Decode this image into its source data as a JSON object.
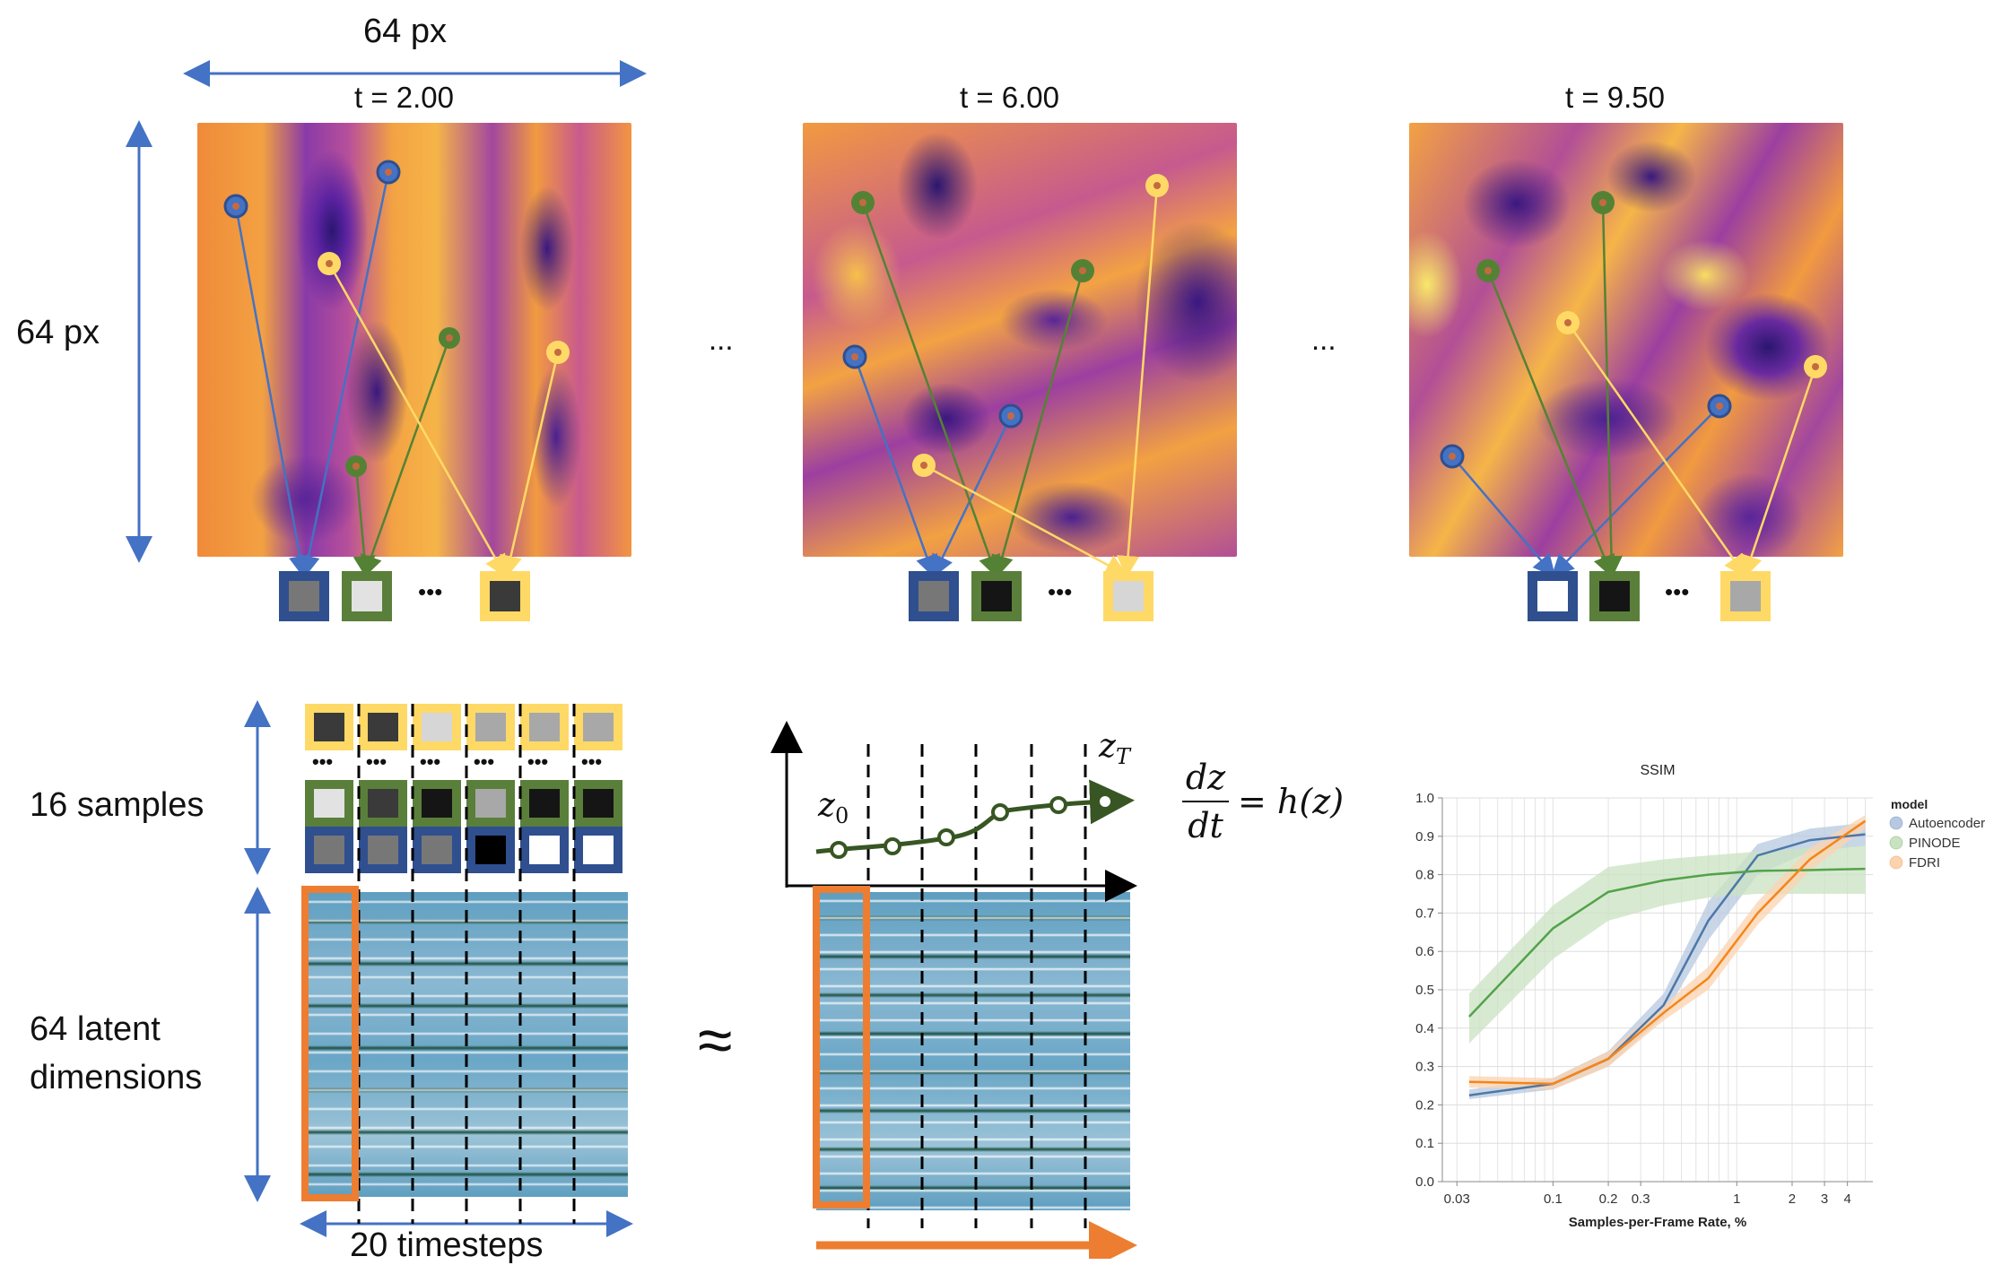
{
  "size_label_top": "64 px",
  "size_label_left": "64 px",
  "ellipsis": "...",
  "ellipsis_dots": "•••",
  "frames": [
    {
      "title": "t = 2.00",
      "swatches": [
        "#777777",
        "#e2e2e2",
        "#3a3a3a"
      ]
    },
    {
      "title": "t = 6.00",
      "swatches": [
        "#777777",
        "#151515",
        "#d6d6d6"
      ]
    },
    {
      "title": "t = 9.50",
      "swatches": [
        "#ffffff",
        "#151515",
        "#a8a8a8"
      ]
    }
  ],
  "samples_label": "16 samples",
  "latent_label_line1": "64 latent",
  "latent_label_line2": "dimensions",
  "timesteps_label": "20 timesteps",
  "approx_symbol": "≈",
  "ode": {
    "numerator": "dz",
    "denominator": "dt",
    "rhs": "= h(z)",
    "z0": "z",
    "z0_sub": "0",
    "zT": "z",
    "zT_sub": "T"
  },
  "colors": {
    "blue": "#4472c4",
    "blue_border": "#2f4f8f",
    "green": "#548235",
    "green_border": "#5a7f3a",
    "yellow": "#ffd966",
    "orange": "#ed7d31",
    "dark_green": "#375623"
  },
  "sample_grid": {
    "yellow_row": [
      "#3a3a3a",
      "#3a3a3a",
      "#d6d6d6",
      "#a8a8a8",
      "#a8a8a8",
      "#a8a8a8"
    ],
    "green_row": [
      "#e2e2e2",
      "#3a3a3a",
      "#151515",
      "#a8a8a8",
      "#151515",
      "#151515"
    ],
    "blue_row": [
      "#777777",
      "#777777",
      "#777777",
      "#000000",
      "#ffffff",
      "#ffffff"
    ]
  },
  "chart_data": {
    "type": "line",
    "title": "SSIM",
    "xlabel": "Samples-per-Frame Rate, %",
    "ylabel": "",
    "x_scale": "log",
    "xlim": [
      0.025,
      5.5
    ],
    "ylim": [
      0,
      1.0
    ],
    "x_ticks": [
      0.03,
      0.1,
      0.2,
      0.3,
      1,
      2,
      3,
      4
    ],
    "x_tick_labels": [
      "0.03",
      "0.1",
      "0.2",
      "0.3",
      "1",
      "2",
      "3",
      "4"
    ],
    "y_ticks": [
      0,
      0.1,
      0.2,
      0.3,
      0.4,
      0.5,
      0.6,
      0.7,
      0.8,
      0.9,
      1.0
    ],
    "y_tick_labels": [
      "0.0",
      "0.1",
      "0.2",
      "0.3",
      "0.4",
      "0.5",
      "0.6",
      "0.7",
      "0.8",
      "0.9",
      "1.0"
    ],
    "grid": true,
    "legend_title": "model",
    "legend_position": "right",
    "series": [
      {
        "name": "Autoencoder",
        "color": "#4c78a8",
        "band": "#b7c8e0",
        "x": [
          0.035,
          0.1,
          0.2,
          0.4,
          0.7,
          1.3,
          2.5,
          5.0
        ],
        "y": [
          0.225,
          0.255,
          0.32,
          0.46,
          0.68,
          0.85,
          0.89,
          0.905
        ],
        "y_lo": [
          0.215,
          0.24,
          0.3,
          0.43,
          0.63,
          0.8,
          0.86,
          0.875
        ],
        "y_hi": [
          0.24,
          0.27,
          0.34,
          0.49,
          0.73,
          0.88,
          0.92,
          0.935
        ]
      },
      {
        "name": "PINODE",
        "color": "#54a24b",
        "band": "#c9e3c2",
        "x": [
          0.035,
          0.1,
          0.2,
          0.4,
          0.7,
          1.3,
          2.5,
          5.0
        ],
        "y": [
          0.43,
          0.66,
          0.755,
          0.785,
          0.8,
          0.81,
          0.812,
          0.815
        ],
        "y_lo": [
          0.36,
          0.58,
          0.68,
          0.72,
          0.74,
          0.75,
          0.75,
          0.75
        ],
        "y_hi": [
          0.49,
          0.72,
          0.82,
          0.84,
          0.85,
          0.86,
          0.87,
          0.875
        ]
      },
      {
        "name": "FDRI",
        "color": "#f58518",
        "band": "#fbd3b0",
        "x": [
          0.035,
          0.1,
          0.2,
          0.4,
          0.7,
          1.3,
          2.5,
          5.0
        ],
        "y": [
          0.26,
          0.255,
          0.32,
          0.44,
          0.53,
          0.7,
          0.84,
          0.94
        ],
        "y_lo": [
          0.245,
          0.24,
          0.3,
          0.42,
          0.5,
          0.67,
          0.81,
          0.92
        ],
        "y_hi": [
          0.275,
          0.27,
          0.34,
          0.46,
          0.56,
          0.73,
          0.87,
          0.955
        ]
      }
    ]
  }
}
